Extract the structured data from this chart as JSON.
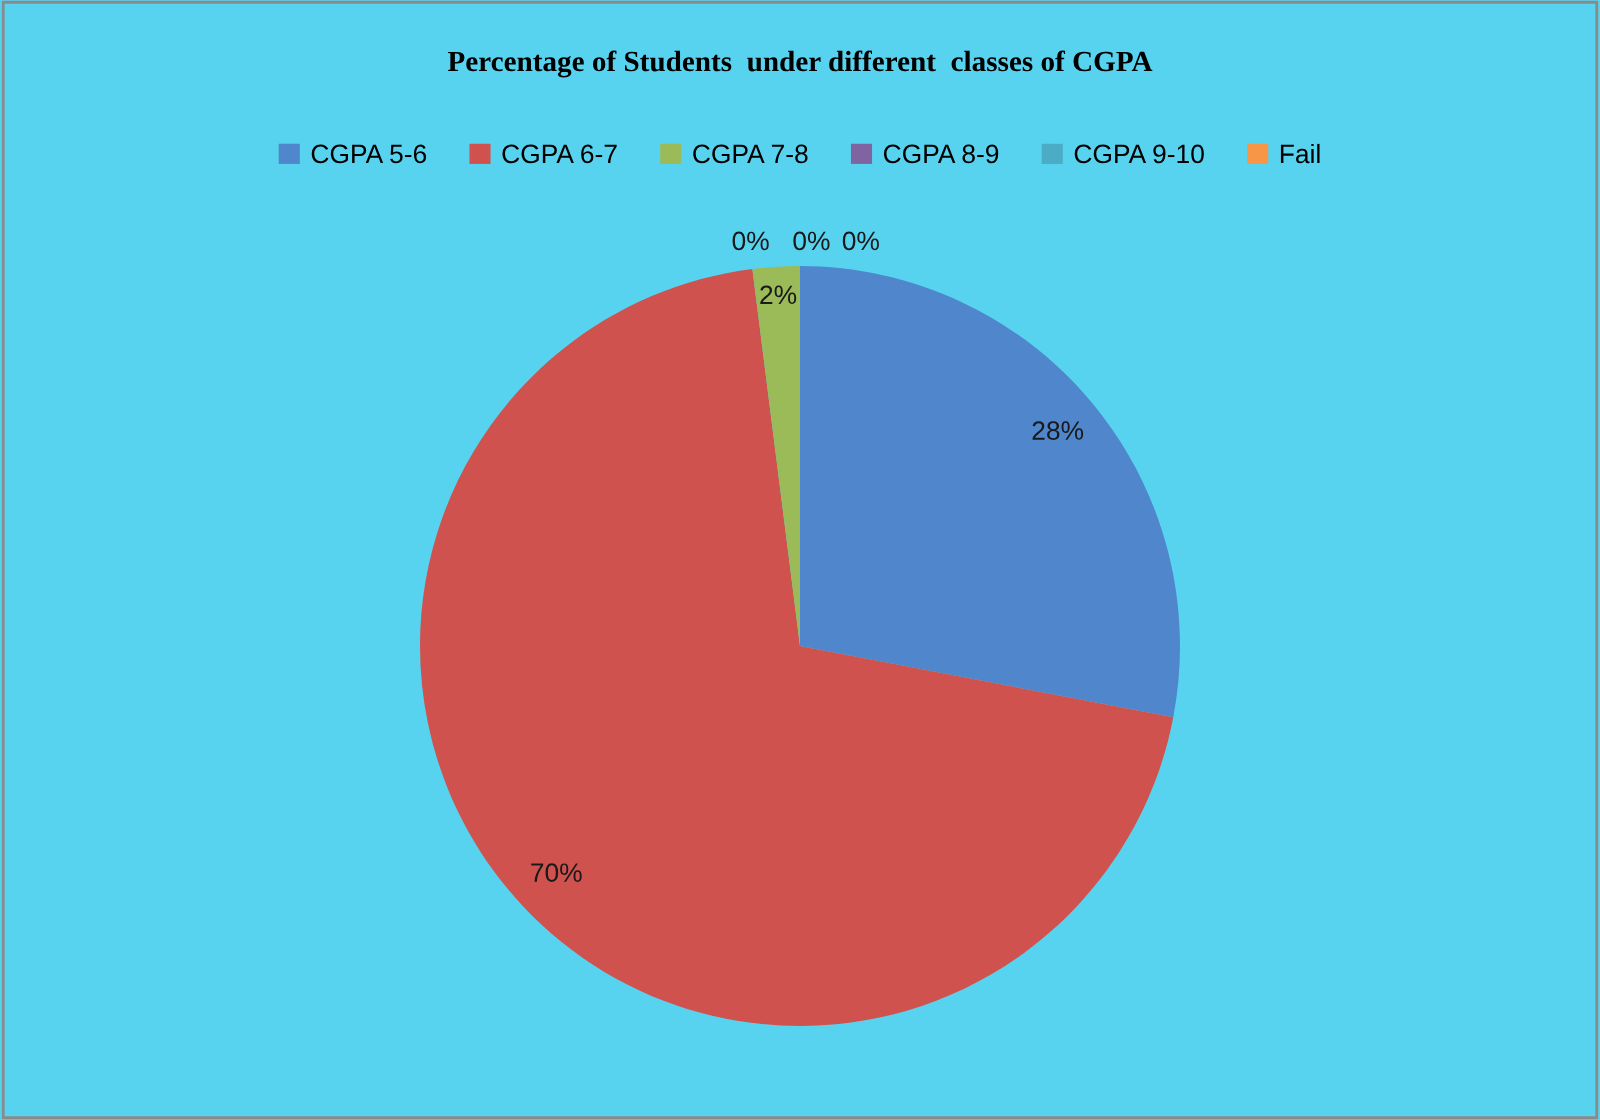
{
  "chart_data": {
    "type": "pie",
    "title": "Percentage of Students  under different  classes of CGPA",
    "categories": [
      "CGPA 5-6",
      "CGPA 6-7",
      "CGPA 7-8",
      "CGPA 8-9",
      "CGPA 9-10",
      "Fail"
    ],
    "values": [
      28,
      70,
      2,
      0,
      0,
      0
    ],
    "value_labels": [
      "28%",
      "70%",
      "2%",
      "0%",
      "0%",
      "0%"
    ],
    "colors": [
      "#4f86cc",
      "#d0524e",
      "#9bbb59",
      "#8064a2",
      "#4bacc6",
      "#f79646"
    ],
    "legend": "top"
  }
}
